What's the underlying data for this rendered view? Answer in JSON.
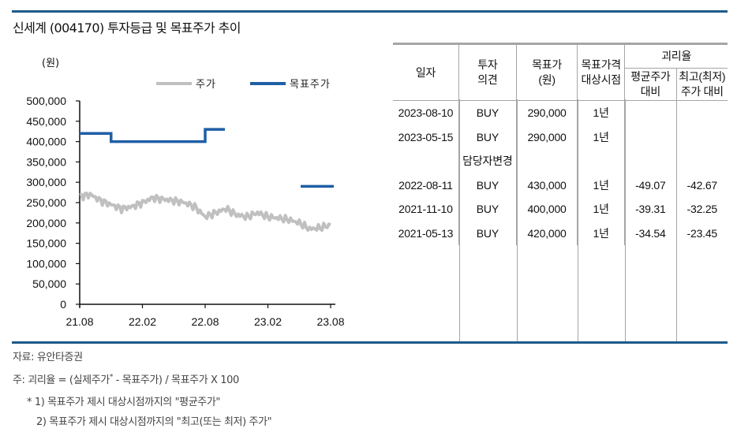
{
  "title": "신세계 (004170) 투자등급 및 목표주가 추이",
  "chart_data": {
    "type": "line",
    "title": "신세계 (004170) 투자등급 및 목표주가 추이",
    "ylabel": "(원)",
    "xlabel": "",
    "ylim": [
      0,
      500000
    ],
    "yticks": [
      "500,000",
      "450,000",
      "400,000",
      "350,000",
      "300,000",
      "250,000",
      "200,000",
      "150,000",
      "100,000",
      "50,000",
      "0"
    ],
    "xticks": [
      "21.08",
      "22.02",
      "22.08",
      "23.02",
      "23.08"
    ],
    "grid": false,
    "legend_position": "top-right",
    "series": [
      {
        "name": "주가",
        "color": "#c0c0c0",
        "x": [
          "21.08",
          "21.09",
          "21.10",
          "21.11",
          "21.12",
          "22.01",
          "22.02",
          "22.03",
          "22.04",
          "22.05",
          "22.06",
          "22.07",
          "22.08",
          "22.09",
          "22.10",
          "22.11",
          "22.12",
          "23.01",
          "23.02",
          "23.03",
          "23.04",
          "23.05",
          "23.06",
          "23.07",
          "23.08"
        ],
        "values": [
          265000,
          270000,
          255000,
          245000,
          235000,
          240000,
          250000,
          262000,
          258000,
          255000,
          250000,
          240000,
          215000,
          225000,
          235000,
          220000,
          215000,
          225000,
          215000,
          212000,
          208000,
          200000,
          185000,
          188000,
          195000
        ]
      },
      {
        "name": "목표주가",
        "color": "#1f5fa6",
        "segments": [
          {
            "from": "21.08",
            "to": "21.11",
            "value": 420000
          },
          {
            "from": "21.11",
            "to": "22.08",
            "value": 400000
          },
          {
            "from": "22.08",
            "to": "22.10",
            "value": 430000
          },
          {
            "from": "23.05",
            "to": "23.08",
            "value": 290000
          }
        ]
      }
    ]
  },
  "legend": [
    {
      "label": "주가",
      "color": "#c0c0c0"
    },
    {
      "label": "목표주가",
      "color": "#1f5fa6"
    }
  ],
  "table": {
    "headers": {
      "date": "일자",
      "opinion_1": "투자",
      "opinion_2": "의견",
      "target_1": "목표가",
      "target_2": "(원)",
      "horizon_1": "목표가격",
      "horizon_2": "대상시점",
      "gap": "괴리율",
      "avg_1": "평균주가",
      "avg_2": "대비",
      "max_1": "최고(최저)",
      "max_2": "주가 대비"
    },
    "rows": [
      {
        "date": "2023-08-10",
        "opinion": "BUY",
        "target": "290,000",
        "horizon": "1년",
        "avg": "",
        "max": ""
      },
      {
        "date": "2023-05-15",
        "opinion": "BUY",
        "target": "290,000",
        "horizon": "1년",
        "avg": "",
        "max": ""
      },
      {
        "date": "",
        "opinion": "담당자변경",
        "target": "",
        "horizon": "",
        "avg": "",
        "max": ""
      },
      {
        "date": "2022-08-11",
        "opinion": "BUY",
        "target": "430,000",
        "horizon": "1년",
        "avg": "-49.07",
        "max": "-42.67"
      },
      {
        "date": "2021-11-10",
        "opinion": "BUY",
        "target": "400,000",
        "horizon": "1년",
        "avg": "-39.31",
        "max": "-32.25"
      },
      {
        "date": "2021-05-13",
        "opinion": "BUY",
        "target": "420,000",
        "horizon": "1년",
        "avg": "-34.54",
        "max": "-23.45"
      }
    ]
  },
  "notes": {
    "source": "자료: 유안타증권",
    "formula_pre": "주: 괴리율 = (실제주가",
    "formula_star": "*",
    "formula_post": " - 목표주가) / 목표주가 X 100",
    "note1": "* 1) 목표주가 제시 대상시점까지의 \"평균주가\"",
    "note2": "2) 목표주가 제시 대상시점까지의 \"최고(또는 최저) 주가\""
  }
}
